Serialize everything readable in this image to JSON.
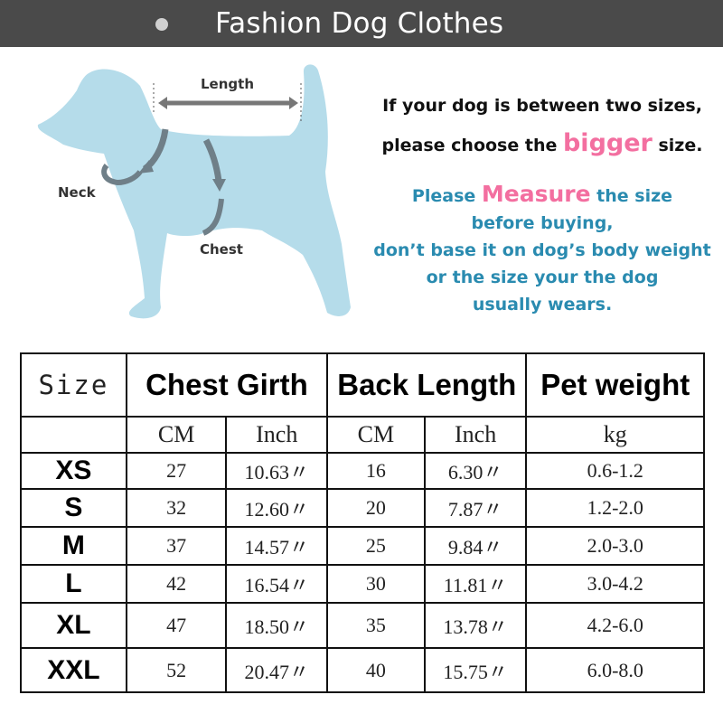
{
  "header": {
    "title": "Fashion Dog Clothes"
  },
  "diagram": {
    "length": "Length",
    "neck": "Neck",
    "chest": "Chest"
  },
  "notes": {
    "line1": "If your dog is between two sizes,",
    "line2_pre": "please choose the ",
    "line2_em": "bigger",
    "line2_post": " size.",
    "line3_pre": "Please ",
    "line3_em": "Measure",
    "line3_post": " the size",
    "line4": "before buying,",
    "line5": "don’t base it on dog’s body weight",
    "line6": "or the size your the dog",
    "line7": "usually wears."
  },
  "colors": {
    "header": "#4a4a4a",
    "pink": "#f36fa0",
    "blue": "#2a8bb0",
    "dog": "#b5dcea"
  },
  "table": {
    "headers": {
      "size": "Size",
      "chest": "Chest Girth",
      "back": "Back Length",
      "weight": "Pet weight"
    },
    "units": {
      "chest_cm": "CM",
      "chest_in": "Inch",
      "back_cm": "CM",
      "back_in": "Inch",
      "weight": "kg"
    },
    "rows": [
      {
        "size": "XS",
        "chest_cm": "27",
        "chest_in": "10.63〃",
        "back_cm": "16",
        "back_in": "6.30〃",
        "weight": "0.6-1.2"
      },
      {
        "size": "S",
        "chest_cm": "32",
        "chest_in": "12.60〃",
        "back_cm": "20",
        "back_in": "7.87〃",
        "weight": "1.2-2.0"
      },
      {
        "size": "M",
        "chest_cm": "37",
        "chest_in": "14.57〃",
        "back_cm": "25",
        "back_in": "9.84〃",
        "weight": "2.0-3.0"
      },
      {
        "size": "L",
        "chest_cm": "42",
        "chest_in": "16.54〃",
        "back_cm": "30",
        "back_in": "11.81〃",
        "weight": "3.0-4.2"
      },
      {
        "size": "XL",
        "chest_cm": "47",
        "chest_in": "18.50〃",
        "back_cm": "35",
        "back_in": "13.78〃",
        "weight": "4.2-6.0"
      },
      {
        "size": "XXL",
        "chest_cm": "52",
        "chest_in": "20.47〃",
        "back_cm": "40",
        "back_in": "15.75〃",
        "weight": "6.0-8.0"
      }
    ]
  }
}
